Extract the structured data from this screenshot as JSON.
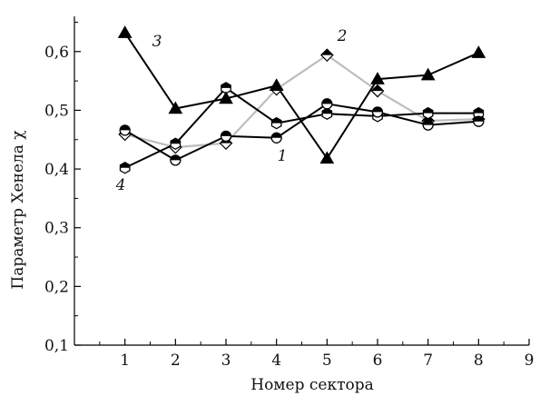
{
  "chart_data": {
    "type": "line",
    "xlabel": "Номер сектора",
    "ylabel": "Параметр Хенела χ",
    "xlim": [
      0,
      9
    ],
    "ylim": [
      0.1,
      0.66
    ],
    "x_ticks": [
      1,
      2,
      3,
      4,
      5,
      6,
      7,
      8,
      9
    ],
    "x_tick_labels": [
      "1",
      "2",
      "3",
      "4",
      "5",
      "6",
      "7",
      "8",
      "9"
    ],
    "y_ticks": [
      0.1,
      0.2,
      0.3,
      0.4,
      0.5,
      0.6
    ],
    "y_tick_labels": [
      "0,1",
      "0,2",
      "0,3",
      "0,4",
      "0,5",
      "0,6"
    ],
    "x": [
      1,
      2,
      3,
      4,
      5,
      6,
      7,
      8
    ],
    "series": [
      {
        "label": "1",
        "values": [
          0.466,
          0.415,
          0.456,
          0.453,
          0.511,
          0.497,
          0.475,
          0.481
        ],
        "color": "#000000",
        "marker": "circle-half-top"
      },
      {
        "label": "2",
        "values": [
          0.459,
          0.437,
          0.444,
          0.536,
          0.594,
          0.533,
          0.482,
          0.485
        ],
        "color": "#bdbdbd",
        "marker": "diamond-half-top"
      },
      {
        "label": "3",
        "values": [
          0.632,
          0.503,
          0.52,
          0.542,
          0.418,
          0.553,
          0.56,
          0.598
        ],
        "color": "#000000",
        "marker": "triangle-filled"
      },
      {
        "label": "4",
        "values": [
          0.402,
          0.443,
          0.538,
          0.478,
          0.494,
          0.49,
          0.495,
          0.495
        ],
        "color": "#000000",
        "marker": "hexagon-half-top"
      }
    ],
    "grid": false,
    "legend": "none"
  }
}
